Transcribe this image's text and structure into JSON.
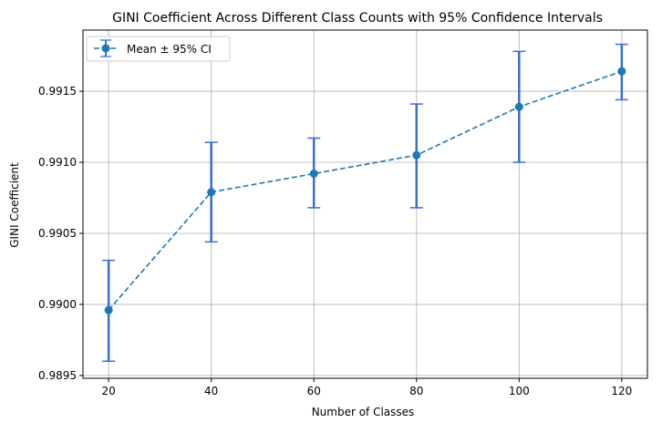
{
  "chart_data": {
    "type": "line",
    "title": "GINI Coefficient Across Different Class Counts with 95% Confidence Intervals",
    "xlabel": "Number of Classes",
    "ylabel": "GINI Coefficient",
    "x": [
      20,
      40,
      60,
      80,
      100,
      120
    ],
    "xlim": [
      15,
      125
    ],
    "ylim": [
      0.98948,
      0.99193
    ],
    "xticks": [
      20,
      40,
      60,
      80,
      100,
      120
    ],
    "yticks": [
      0.9895,
      0.99,
      0.9905,
      0.991,
      0.9915
    ],
    "ytick_labels": [
      "0.9895",
      "0.9900",
      "0.9905",
      "0.9910",
      "0.9915"
    ],
    "grid": true,
    "legend_position": "top-left",
    "series": [
      {
        "name": "Mean ± 95% CI",
        "mean": [
          0.98996,
          0.99079,
          0.99092,
          0.99105,
          0.99139,
          0.99164
        ],
        "ci_lower": [
          0.9896,
          0.99044,
          0.99068,
          0.99068,
          0.991,
          0.99144
        ],
        "ci_upper": [
          0.99031,
          0.99114,
          0.99117,
          0.99141,
          0.99178,
          0.99183
        ]
      }
    ],
    "colors": {
      "line": "#1f77b4",
      "errorbar": "#3a6fcb",
      "grid": "#b0b0b0",
      "axis": "#000000"
    }
  }
}
